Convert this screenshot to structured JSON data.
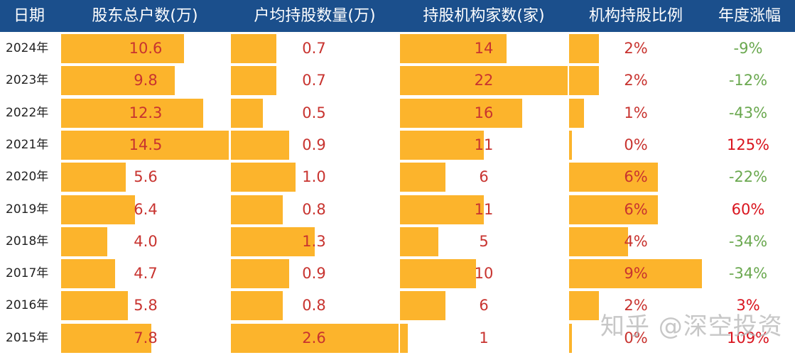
{
  "headers": {
    "date": "日期",
    "holders": "股东总户数(万)",
    "avg_holding": "户均持股数量(万)",
    "institutions": "持股机构家数(家)",
    "inst_ratio": "机构持股比例",
    "annual_change": "年度涨幅"
  },
  "rows": [
    {
      "year": "2024年",
      "holders": "10.6",
      "avg": "0.7",
      "inst": "14",
      "ratio": "2%",
      "change": "-9%"
    },
    {
      "year": "2023年",
      "holders": "9.8",
      "avg": "0.7",
      "inst": "22",
      "ratio": "2%",
      "change": "-12%"
    },
    {
      "year": "2022年",
      "holders": "12.3",
      "avg": "0.5",
      "inst": "16",
      "ratio": "1%",
      "change": "-43%"
    },
    {
      "year": "2021年",
      "holders": "14.5",
      "avg": "0.9",
      "inst": "11",
      "ratio": "0%",
      "change": "125%"
    },
    {
      "year": "2020年",
      "holders": "5.6",
      "avg": "1.0",
      "inst": "6",
      "ratio": "6%",
      "change": "-22%"
    },
    {
      "year": "2019年",
      "holders": "6.4",
      "avg": "0.8",
      "inst": "11",
      "ratio": "6%",
      "change": "60%"
    },
    {
      "year": "2018年",
      "holders": "4.0",
      "avg": "1.3",
      "inst": "5",
      "ratio": "4%",
      "change": "-34%"
    },
    {
      "year": "2017年",
      "holders": "4.7",
      "avg": "0.9",
      "inst": "10",
      "ratio": "9%",
      "change": "-34%"
    },
    {
      "year": "2016年",
      "holders": "5.8",
      "avg": "0.8",
      "inst": "6",
      "ratio": "2%",
      "change": "3%"
    },
    {
      "year": "2015年",
      "holders": "7.8",
      "avg": "2.6",
      "inst": "1",
      "ratio": "0%",
      "change": "109%"
    }
  ],
  "watermark": "知乎 @深空投资",
  "colors": {
    "header_bg": "#1b4f8c",
    "bar": "#fcb42c",
    "value_text": "#c8332f",
    "positive_change": "#d9141e",
    "negative_change": "#6aa84f"
  },
  "chart_data": {
    "type": "table",
    "title": "",
    "columns": [
      "日期",
      "股东总户数(万)",
      "户均持股数量(万)",
      "持股机构家数(家)",
      "机构持股比例",
      "年度涨幅"
    ],
    "categories": [
      "2024年",
      "2023年",
      "2022年",
      "2021年",
      "2020年",
      "2019年",
      "2018年",
      "2017年",
      "2016年",
      "2015年"
    ],
    "series": [
      {
        "name": "股东总户数(万)",
        "values": [
          10.6,
          9.8,
          12.3,
          14.5,
          5.6,
          6.4,
          4.0,
          4.7,
          5.8,
          7.8
        ]
      },
      {
        "name": "户均持股数量(万)",
        "values": [
          0.7,
          0.7,
          0.5,
          0.9,
          1.0,
          0.8,
          1.3,
          0.9,
          0.8,
          2.6
        ]
      },
      {
        "name": "持股机构家数(家)",
        "values": [
          14,
          22,
          16,
          11,
          6,
          11,
          5,
          10,
          6,
          1
        ]
      },
      {
        "name": "机构持股比例(%)",
        "values": [
          2,
          2,
          1,
          0,
          6,
          6,
          4,
          9,
          2,
          0
        ]
      },
      {
        "name": "年度涨幅(%)",
        "values": [
          -9,
          -12,
          -43,
          125,
          -22,
          60,
          -34,
          -34,
          3,
          109
        ]
      }
    ],
    "bars_in_cells": true,
    "legend": "none"
  }
}
